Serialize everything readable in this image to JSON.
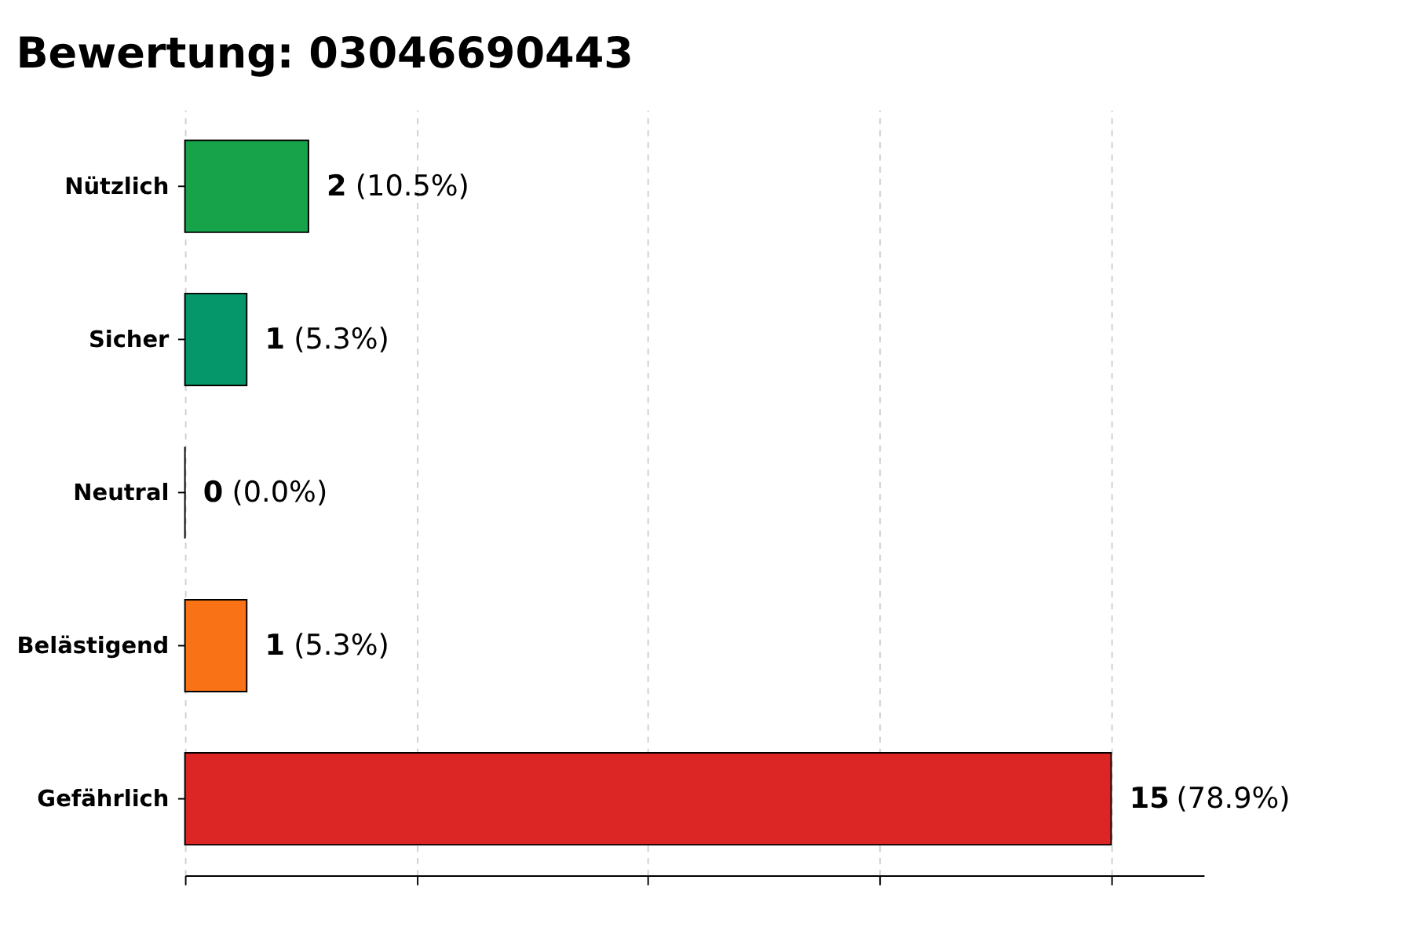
{
  "chart_data": {
    "type": "bar",
    "orientation": "horizontal",
    "title": "Bewertung: 03046690443",
    "categories": [
      "Nützlich",
      "Sicher",
      "Neutral",
      "Belästigend",
      "Gefährlich"
    ],
    "values": [
      2,
      1,
      0,
      1,
      15
    ],
    "colors": [
      "#16a34a",
      "#059669",
      "#000000",
      "#f97316",
      "#dc2626"
    ],
    "data_labels": true,
    "annotations": [
      {
        "text": "(10.5%)",
        "x": 2,
        "y": "Nützlich"
      },
      {
        "text": "(5.3%)",
        "x": 1,
        "y": "Sicher"
      },
      {
        "text": "(0.0%)",
        "x": 0,
        "y": "Neutral"
      },
      {
        "text": "(5.3%)",
        "x": 1,
        "y": "Belästigend"
      },
      {
        "text": "(78.9%)",
        "x": 15,
        "y": "Gefährlich"
      }
    ],
    "xlim": [
      0,
      16.5
    ],
    "xticks": [
      {
        "value": 0,
        "label": null
      },
      {
        "value": 3.75,
        "label": null
      },
      {
        "value": 7.5,
        "label": null
      },
      {
        "value": 11.25,
        "label": null
      },
      {
        "value": 15,
        "label": null
      }
    ],
    "grid": "x",
    "tick_labels": "y"
  }
}
